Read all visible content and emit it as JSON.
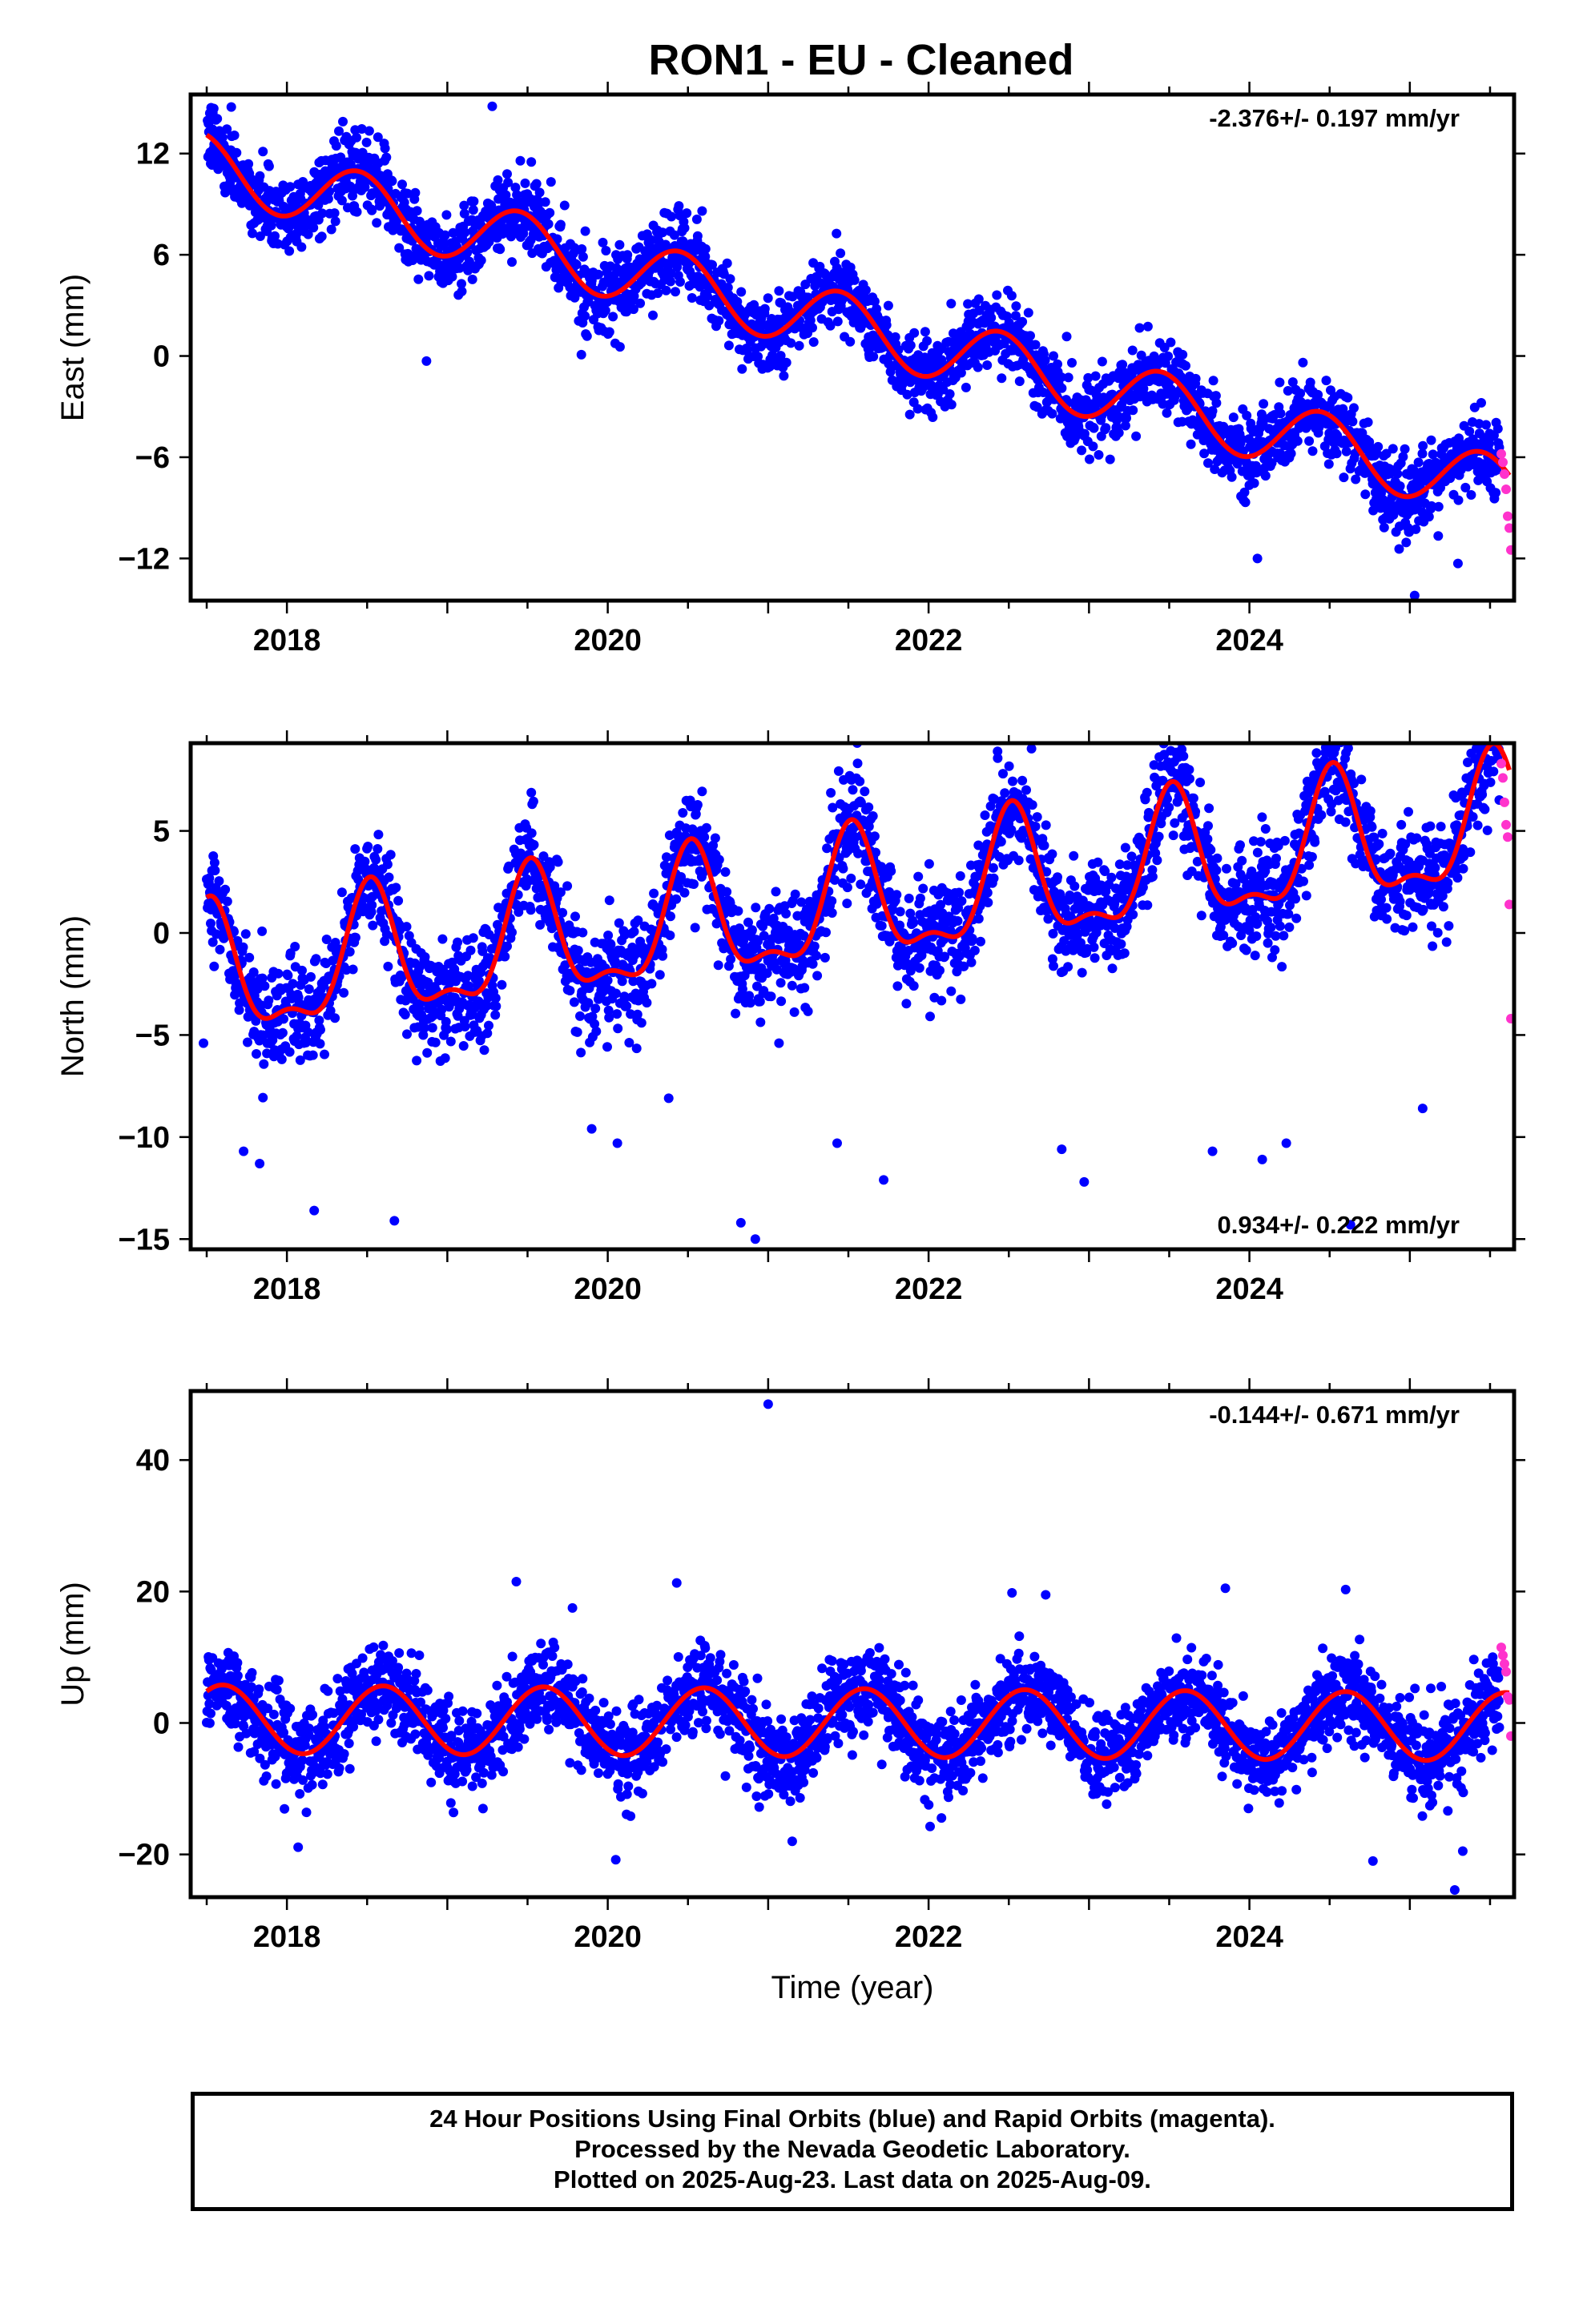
{
  "title": "RON1  - EU - Cleaned",
  "colors": {
    "final": "#0000ff",
    "rapid": "#ff33cc",
    "model": "#ff0000",
    "frame": "#000000"
  },
  "chart_data": [
    {
      "type": "scatter",
      "component": "east",
      "ylabel": "East (mm)",
      "xlabel": "",
      "xlim": [
        2017.4,
        2025.65
      ],
      "ylim": [
        -14.5,
        15.5
      ],
      "yticks": [
        -12,
        -6,
        0,
        6,
        12
      ],
      "xticks": [
        2018,
        2020,
        2022,
        2024
      ],
      "rate_text": "-2.376+/- 0.197 mm/yr",
      "rate_position": "top-right",
      "model": {
        "start": 2017.5,
        "start_value": 11.3,
        "rate": -2.376,
        "annual_amplitude": 1.9,
        "annual_peak": 2017.45,
        "semiannual_amplitude": 0.0
      },
      "noise_sd": 1.1,
      "outliers": [
        [
          2019.28,
          14.8
        ],
        [
          2018.87,
          -0.3
        ],
        [
          2025.03,
          -14.2
        ],
        [
          2024.05,
          -12.0
        ],
        [
          2025.3,
          -12.3
        ]
      ],
      "rapid": [
        [
          2025.57,
          -5.8
        ],
        [
          2025.58,
          -6.3
        ],
        [
          2025.59,
          -7.0
        ],
        [
          2025.6,
          -7.9
        ],
        [
          2025.61,
          -9.5
        ],
        [
          2025.62,
          -10.2
        ],
        [
          2025.63,
          -11.5
        ]
      ]
    },
    {
      "type": "scatter",
      "component": "north",
      "ylabel": "North (mm)",
      "xlabel": "",
      "xlim": [
        2017.4,
        2025.65
      ],
      "ylim": [
        -15.5,
        9.3
      ],
      "yticks": [
        -15,
        -10,
        -5,
        0,
        5
      ],
      "xticks": [
        2018,
        2020,
        2022,
        2024
      ],
      "rate_text": "0.934+/- 0.222 mm/yr",
      "rate_position": "bottom-right",
      "model": {
        "start": 2017.5,
        "start_value": -2.4,
        "rate": 0.934,
        "annual_amplitude": 3.0,
        "annual_peak": 2017.52,
        "semiannual_amplitude": 1.2
      },
      "noise_sd": 1.3,
      "outliers": [
        [
          2017.73,
          -10.7
        ],
        [
          2017.83,
          -11.3
        ],
        [
          2018.17,
          -13.6
        ],
        [
          2018.67,
          -14.1
        ],
        [
          2019.9,
          -9.6
        ],
        [
          2020.06,
          -10.3
        ],
        [
          2020.38,
          -8.1
        ],
        [
          2020.83,
          -14.2
        ],
        [
          2020.92,
          -15.0
        ],
        [
          2021.43,
          -10.3
        ],
        [
          2021.72,
          -12.1
        ],
        [
          2022.83,
          -10.6
        ],
        [
          2022.97,
          -12.2
        ],
        [
          2023.77,
          -10.7
        ],
        [
          2024.08,
          -11.1
        ],
        [
          2024.23,
          -10.3
        ],
        [
          2024.63,
          -14.3
        ],
        [
          2025.08,
          -8.6
        ],
        [
          2022.43,
          8.9
        ],
        [
          2017.48,
          -5.4
        ]
      ],
      "rapid": [
        [
          2025.57,
          8.3
        ],
        [
          2025.58,
          7.6
        ],
        [
          2025.59,
          6.4
        ],
        [
          2025.6,
          5.3
        ],
        [
          2025.61,
          4.7
        ],
        [
          2025.62,
          1.4
        ],
        [
          2025.63,
          -4.2
        ]
      ]
    },
    {
      "type": "scatter",
      "component": "up",
      "ylabel": "Up (mm)",
      "xlabel": "Time (year)",
      "xlim": [
        2017.4,
        2025.65
      ],
      "ylim": [
        -26.5,
        50.5
      ],
      "yticks": [
        -20,
        0,
        20,
        40
      ],
      "xticks": [
        2018,
        2020,
        2022,
        2024
      ],
      "rate_text": "-0.144+/- 0.671 mm/yr",
      "rate_position": "top-right",
      "model": {
        "start": 2017.5,
        "start_value": 0.6,
        "rate": -0.144,
        "annual_amplitude": 5.2,
        "annual_peak": 2017.6,
        "semiannual_amplitude": 0.0
      },
      "noise_sd": 3.3,
      "outliers": [
        [
          2021.0,
          48.5
        ],
        [
          2019.43,
          21.5
        ],
        [
          2020.43,
          21.3
        ],
        [
          2022.52,
          19.8
        ],
        [
          2022.73,
          19.5
        ],
        [
          2020.05,
          -20.8
        ],
        [
          2025.28,
          -25.4
        ],
        [
          2024.77,
          -21.0
        ],
        [
          2018.07,
          -18.9
        ],
        [
          2021.15,
          -18.0
        ],
        [
          2019.78,
          17.5
        ],
        [
          2023.85,
          20.5
        ],
        [
          2024.6,
          20.3
        ],
        [
          2025.33,
          -19.5
        ]
      ],
      "rapid": [
        [
          2025.57,
          11.5
        ],
        [
          2025.58,
          10.3
        ],
        [
          2025.59,
          9.0
        ],
        [
          2025.6,
          7.8
        ],
        [
          2025.61,
          4.0
        ],
        [
          2025.62,
          3.5
        ],
        [
          2025.63,
          -2.0
        ]
      ]
    }
  ],
  "footer": {
    "line1": "24 Hour Positions Using Final Orbits (blue) and Rapid Orbits (magenta).",
    "line2": "Processed by the Nevada Geodetic Laboratory.",
    "line3": "Plotted on 2025-Aug-23. Last data on 2025-Aug-09."
  }
}
